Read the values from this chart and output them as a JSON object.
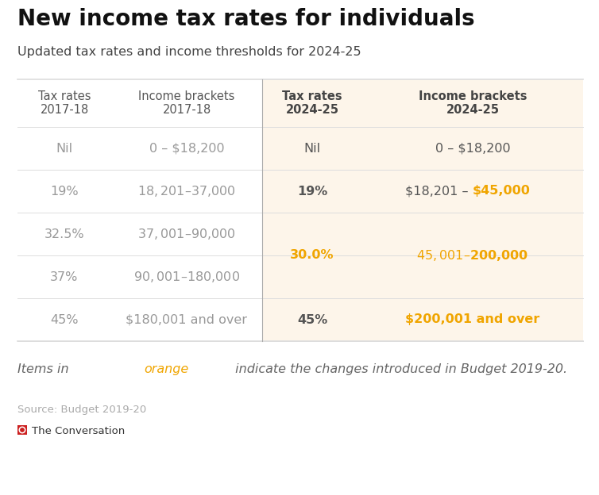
{
  "title": "New income tax rates for individuals",
  "subtitle": "Updated tax rates and income thresholds for 2024-25",
  "col_headers": [
    "Tax rates\n2017-18",
    "Income brackets\n2017-18",
    "Tax rates\n2024-25",
    "Income brackets\n2024-25"
  ],
  "old_rows": [
    {
      "rate": "Nil",
      "bracket": "0 – $18,200"
    },
    {
      "rate": "19%",
      "bracket": "$18,201 – $37,000"
    },
    {
      "rate": "32.5%",
      "bracket": "$37,001 – $90,000"
    },
    {
      "rate": "37%",
      "bracket": "$90,001 – $180,000"
    },
    {
      "rate": "45%",
      "bracket": "$180,001 and over"
    }
  ],
  "bg_color": "#ffffff",
  "highlight_bg": "#fdf5ea",
  "header_text_dark": "#555555",
  "header_text_bold": "#444444",
  "old_text_color": "#999999",
  "new_text_color": "#555555",
  "orange_color": "#f0a500",
  "line_color": "#dddddd",
  "divider_color": "#aaaaaa",
  "source_text": "Source: Budget 2019-20",
  "publisher_text": "The Conversation",
  "footer_pre": "Items in ",
  "footer_orange": "orange",
  "footer_post": " indicate the changes introduced in Budget 2019-20."
}
